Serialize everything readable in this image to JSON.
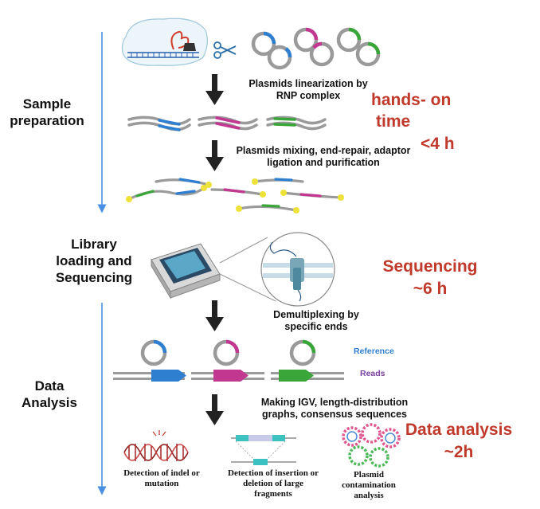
{
  "stages": {
    "sample_preparation": "Sample\npreparation",
    "library_sequencing": "Library\nloading and\nSequencing",
    "data_analysis": "Data\nAnalysis"
  },
  "steps": {
    "linearization": "Plasmids linearization by\nRNP complex",
    "mixing": "Plasmids mixing, end-repair, adaptor\nligation and purification",
    "demultiplexing": "Demultiplexing by\nspecific ends",
    "igv": "Making IGV, length-distribution\ngraphs, consensus sequences"
  },
  "timings": {
    "hands_on_1": "hands- on",
    "hands_on_2": "time",
    "hands_on_3": "<4 h",
    "sequencing_1": "Sequencing",
    "sequencing_2": "~6 h",
    "analysis_1": "Data analysis",
    "analysis_2": "~2h"
  },
  "legend": {
    "reference": "Reference",
    "reads": "Reads"
  },
  "outputs": {
    "indel": "Detection of indel or\nmutation",
    "insertion": "Detection of insertion or\ndeletion of large\nfragments",
    "contamination": "Plasmid\ncontamination\nanalysis"
  },
  "colors": {
    "blue": "#2f7fd0",
    "magenta": "#c2378f",
    "green": "#3aa63a",
    "gray": "#9a9a9a",
    "yellow": "#ede23a",
    "timing_red": "#c0392b",
    "timeline_blue": "#4a90e2"
  }
}
